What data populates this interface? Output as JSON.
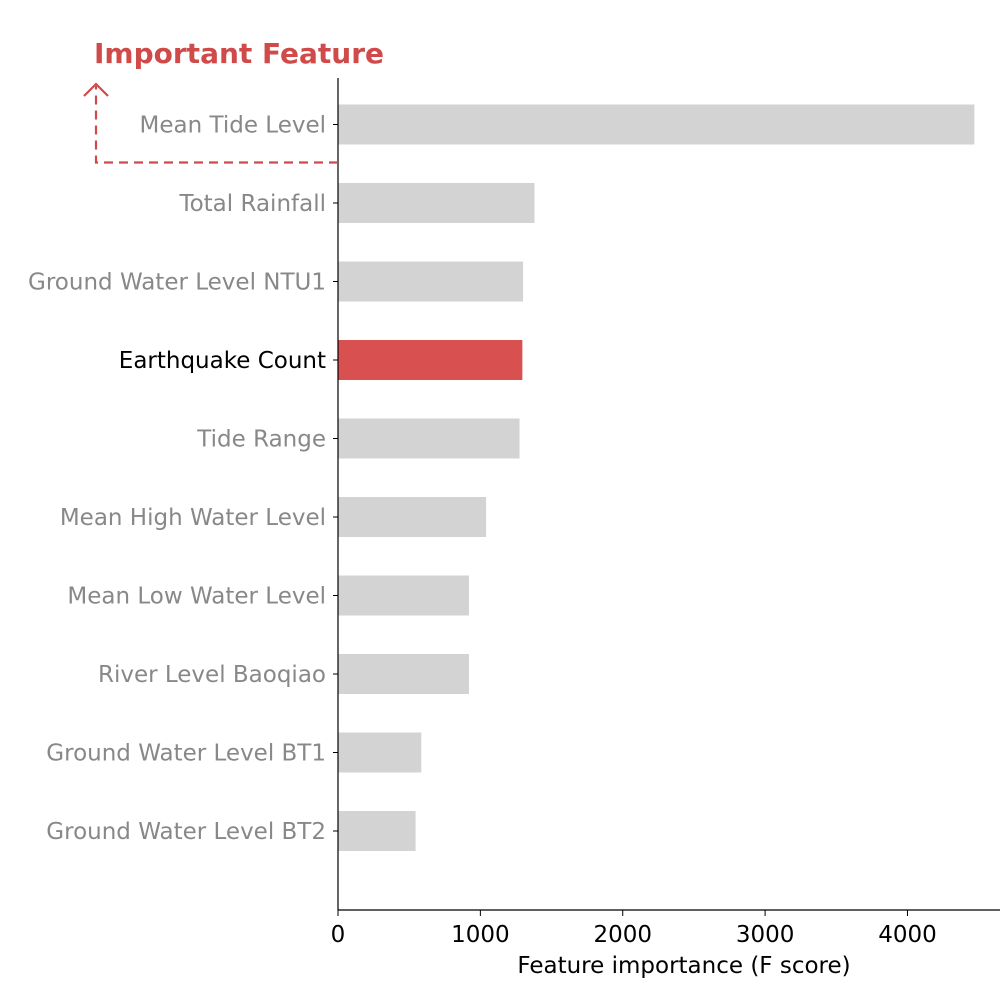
{
  "chart_data": {
    "type": "bar",
    "orientation": "horizontal",
    "title": "",
    "xlabel": "Feature importance (F score)",
    "ylabel": "",
    "xlim": [
      0,
      4650
    ],
    "xticks": [
      0,
      1000,
      2000,
      3000,
      4000
    ],
    "xtick_labels": [
      "0",
      "1000",
      "2000",
      "3000",
      "4000"
    ],
    "grid": false,
    "categories": [
      "Mean Tide Level",
      "Total Rainfall",
      "Ground Water Level NTU1",
      "Earthquake Count",
      "Tide Range",
      "Mean High Water Level",
      "Mean Low Water Level",
      "River Level Baoqiao",
      "Ground Water Level BT1",
      "Ground Water Level BT2"
    ],
    "values": [
      4470,
      1380,
      1300,
      1295,
      1275,
      1040,
      920,
      920,
      585,
      545
    ],
    "highlight_category": "Earthquake Count",
    "colors": {
      "bar_default": "#d3d3d3",
      "bar_highlight": "#d85050",
      "label_default": "#888888",
      "label_highlight": "#000000",
      "annotation": "#d04a4a",
      "axis": "#000000"
    },
    "annotation": {
      "text": "Important Feature",
      "target_category": "Mean Tide Level"
    }
  }
}
